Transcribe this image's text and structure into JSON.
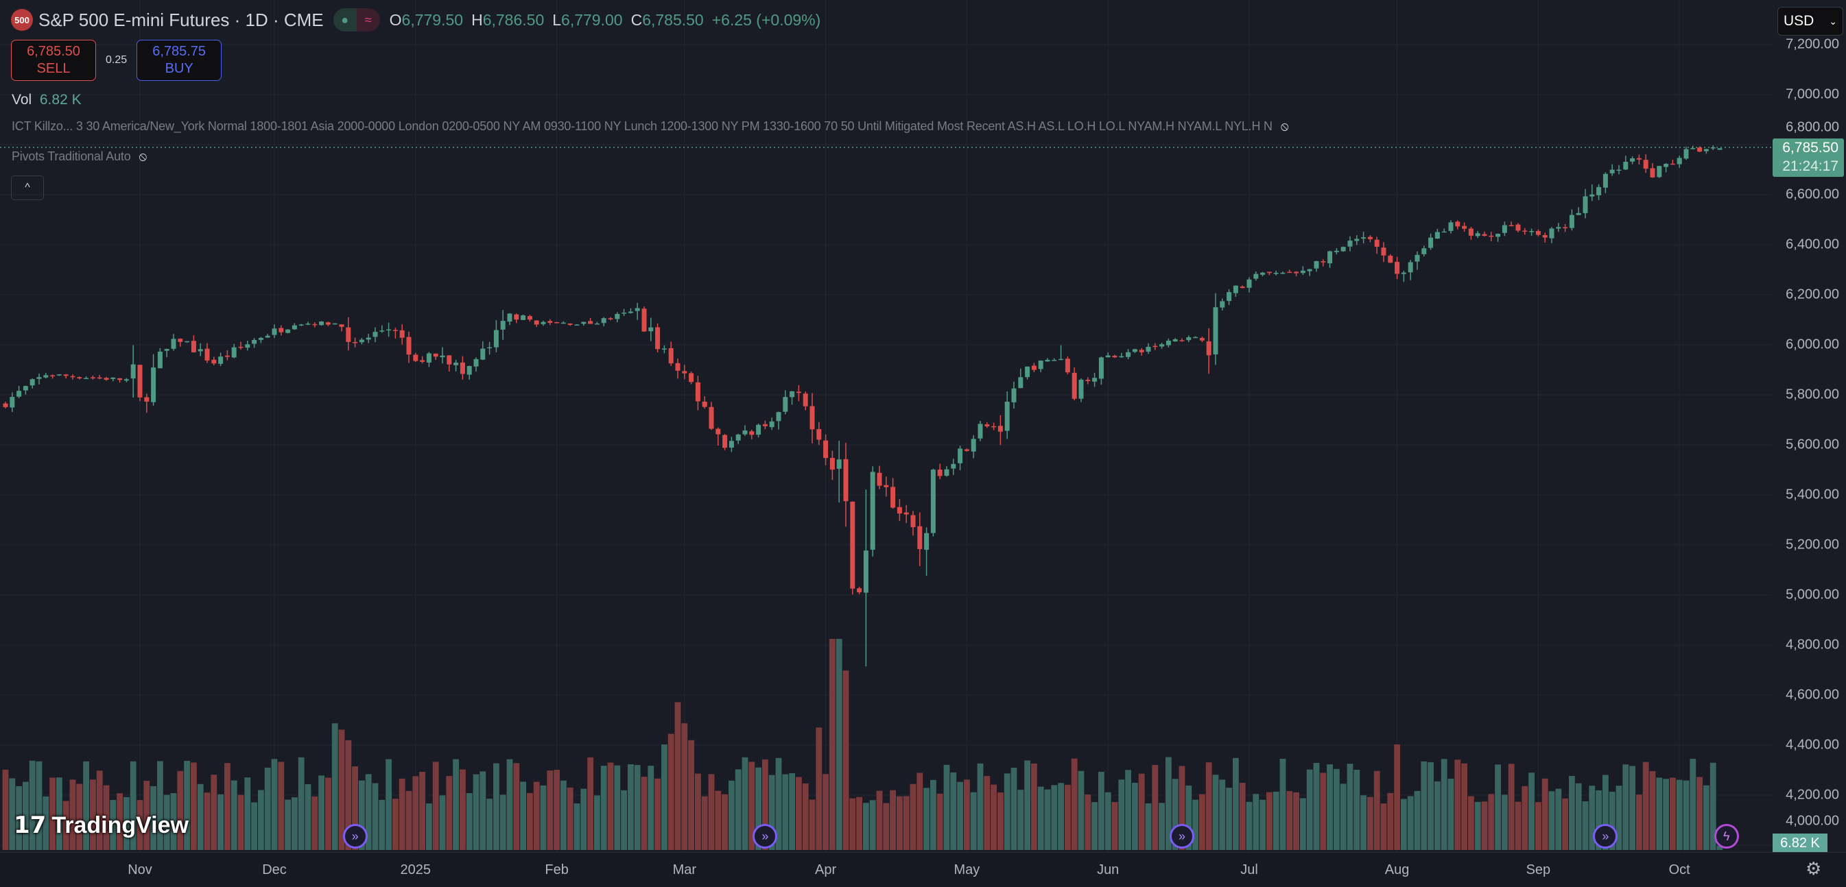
{
  "header": {
    "symbol_badge": "500",
    "title": "S&P 500 E-mini Futures · 1D · CME",
    "status_icons": [
      "market-open-dot-icon",
      "delayed-data-icon"
    ],
    "ohlc": {
      "o_label": "O",
      "o": "6,779.50",
      "h_label": "H",
      "h": "6,786.50",
      "l_label": "L",
      "l": "6,779.00",
      "c_label": "C",
      "c": "6,785.50",
      "change": "+6.25 (+0.09%)"
    },
    "sell_price": "6,785.50",
    "sell_label": "SELL",
    "spread": "0.25",
    "buy_price": "6,785.75",
    "buy_label": "BUY",
    "vol_label": "Vol",
    "vol_value": "6.82 K",
    "indicator1": "ICT Killzo...  3 30 America/New_York Normal 1800-1801 Asia 2000-0000 London 0200-0500 NY AM 0930-1100 NY Lunch 1200-1300 NY PM 1330-1600 70 50 Until Mitigated Most Recent AS.H AS.L LO.H LO.L NYAM.H NYAM.L NYL.H N",
    "indicator2": "Pivots Traditional Auto",
    "collapse_icon": "^"
  },
  "currency": "USD",
  "price_badge": {
    "price": "6,785.50",
    "countdown": "21:24:17"
  },
  "volume_badge": "6.82 K",
  "logo_text": "TradingView",
  "colors": {
    "up": "#4f9a85",
    "down": "#dd4b4b",
    "vol_up": "#3a6661",
    "vol_down": "#7b3a3b",
    "bg": "#1a1c25",
    "grid": "#242733"
  },
  "chart_data": {
    "type": "candlestick",
    "title": "S&P 500 E-mini Futures · 1D · CME",
    "bars": 256,
    "y_ticks": [
      "7,200.00",
      "7,000.00",
      "6,800.00",
      "6,600.00",
      "6,400.00",
      "6,200.00",
      "6,000.00",
      "5,800.00",
      "5,600.00",
      "5,400.00",
      "5,200.00",
      "5,000.00",
      "4,800.00",
      "4,600.00",
      "4,400.00",
      "4,200.00",
      "4,000.00"
    ],
    "y_tick_values": [
      7200,
      7000,
      6800,
      6600,
      6400,
      6200,
      6000,
      5800,
      5600,
      5400,
      5200,
      5000,
      4800,
      4600,
      4400,
      4200,
      4000
    ],
    "ylim": [
      4000,
      7200
    ],
    "x_ticks": [
      {
        "label": "Nov",
        "bar": 20
      },
      {
        "label": "Dec",
        "bar": 40
      },
      {
        "label": "2025",
        "bar": 61
      },
      {
        "label": "Feb",
        "bar": 82
      },
      {
        "label": "Mar",
        "bar": 101
      },
      {
        "label": "Apr",
        "bar": 122
      },
      {
        "label": "May",
        "bar": 143
      },
      {
        "label": "Jun",
        "bar": 164
      },
      {
        "label": "Jul",
        "bar": 185
      },
      {
        "label": "Aug",
        "bar": 207
      },
      {
        "label": "Sep",
        "bar": 228
      },
      {
        "label": "Oct",
        "bar": 249
      }
    ],
    "close_keypoints": [
      [
        0,
        5772
      ],
      [
        6,
        5881
      ],
      [
        19,
        5858
      ],
      [
        20,
        5762
      ],
      [
        23,
        5953
      ],
      [
        26,
        6024
      ],
      [
        31,
        5929
      ],
      [
        38,
        6034
      ],
      [
        43,
        6086
      ],
      [
        50,
        6086
      ],
      [
        52,
        6000
      ],
      [
        57,
        6072
      ],
      [
        61,
        5929
      ],
      [
        65,
        5977
      ],
      [
        68,
        5881
      ],
      [
        73,
        6024
      ],
      [
        75,
        6119
      ],
      [
        80,
        6086
      ],
      [
        87,
        6086
      ],
      [
        94,
        6134
      ],
      [
        97,
        6000
      ],
      [
        101,
        5881
      ],
      [
        104,
        5762
      ],
      [
        107,
        5596
      ],
      [
        110,
        5643
      ],
      [
        115,
        5715
      ],
      [
        117,
        5810
      ],
      [
        120,
        5715
      ],
      [
        122,
        5572
      ],
      [
        124,
        5429
      ],
      [
        126,
        5048
      ],
      [
        128,
        5000
      ],
      [
        129,
        5476
      ],
      [
        131,
        5429
      ],
      [
        134,
        5286
      ],
      [
        136,
        5191
      ],
      [
        138,
        5476
      ],
      [
        142,
        5572
      ],
      [
        145,
        5691
      ],
      [
        148,
        5667
      ],
      [
        152,
        5905
      ],
      [
        157,
        5953
      ],
      [
        159,
        5810
      ],
      [
        164,
        5953
      ],
      [
        169,
        5977
      ],
      [
        174,
        6024
      ],
      [
        179,
        6024
      ],
      [
        181,
        6191
      ],
      [
        187,
        6286
      ],
      [
        192,
        6286
      ],
      [
        197,
        6357
      ],
      [
        202,
        6429
      ],
      [
        207,
        6286
      ],
      [
        211,
        6405
      ],
      [
        215,
        6477
      ],
      [
        220,
        6429
      ],
      [
        223,
        6477
      ],
      [
        227,
        6453
      ],
      [
        229,
        6429
      ],
      [
        234,
        6524
      ],
      [
        237,
        6643
      ],
      [
        242,
        6738
      ],
      [
        245,
        6681
      ],
      [
        250,
        6776
      ],
      [
        255,
        6785.5
      ]
    ],
    "last_bar": {
      "open": 6779.5,
      "high": 6786.5,
      "low": 6779.0,
      "close": 6785.5,
      "volume": "6.82K"
    },
    "volume_spikes": [
      [
        49,
        0.6
      ],
      [
        50,
        0.57
      ],
      [
        51,
        0.52
      ],
      [
        100,
        0.7
      ],
      [
        101,
        0.6
      ],
      [
        102,
        0.52
      ],
      [
        121,
        0.58
      ],
      [
        123,
        1.0
      ],
      [
        124,
        1.0
      ],
      [
        125,
        0.85
      ],
      [
        173,
        0.44
      ],
      [
        207,
        0.5
      ],
      [
        98,
        0.5
      ],
      [
        99,
        0.55
      ]
    ],
    "event_markers": [
      {
        "bar": 52,
        "icon": "contract-roll-icon"
      },
      {
        "bar": 113,
        "icon": "contract-roll-icon"
      },
      {
        "bar": 175,
        "icon": "contract-roll-icon"
      },
      {
        "bar": 238,
        "icon": "contract-roll-icon"
      },
      {
        "bar": 256,
        "icon": "lightning-icon"
      }
    ]
  }
}
